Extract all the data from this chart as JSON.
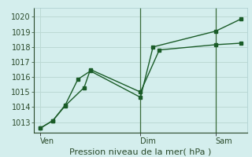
{
  "xlabel": "Pression niveau de la mer( hPa )",
  "bg_color": "#d4eeed",
  "grid_color": "#bcd9d4",
  "line_color": "#1a5c28",
  "vline_color": "#3a6b3a",
  "xtick_labels": [
    "Ven",
    "Dim",
    "Sam"
  ],
  "xtick_positions": [
    0,
    8,
    14
  ],
  "yticks": [
    1013,
    1014,
    1015,
    1016,
    1017,
    1018,
    1019,
    1020
  ],
  "ylim": [
    1012.3,
    1020.6
  ],
  "xlim": [
    -0.5,
    16.5
  ],
  "series1_x": [
    0,
    1,
    2,
    3.5,
    4,
    8,
    9.5,
    14,
    16
  ],
  "series1_y": [
    1012.6,
    1013.1,
    1014.1,
    1015.3,
    1016.5,
    1015.0,
    1017.8,
    1018.15,
    1018.25
  ],
  "series2_x": [
    0,
    1,
    2,
    3,
    4,
    8,
    9,
    14,
    16
  ],
  "series2_y": [
    1012.6,
    1013.1,
    1014.15,
    1015.85,
    1016.4,
    1014.65,
    1018.0,
    1019.05,
    1019.85
  ],
  "vline_positions": [
    8,
    14
  ],
  "markersize": 2.5,
  "linewidth": 1.0,
  "ylabel_fontsize": 7,
  "xlabel_fontsize": 8,
  "tick_fontsize": 7
}
